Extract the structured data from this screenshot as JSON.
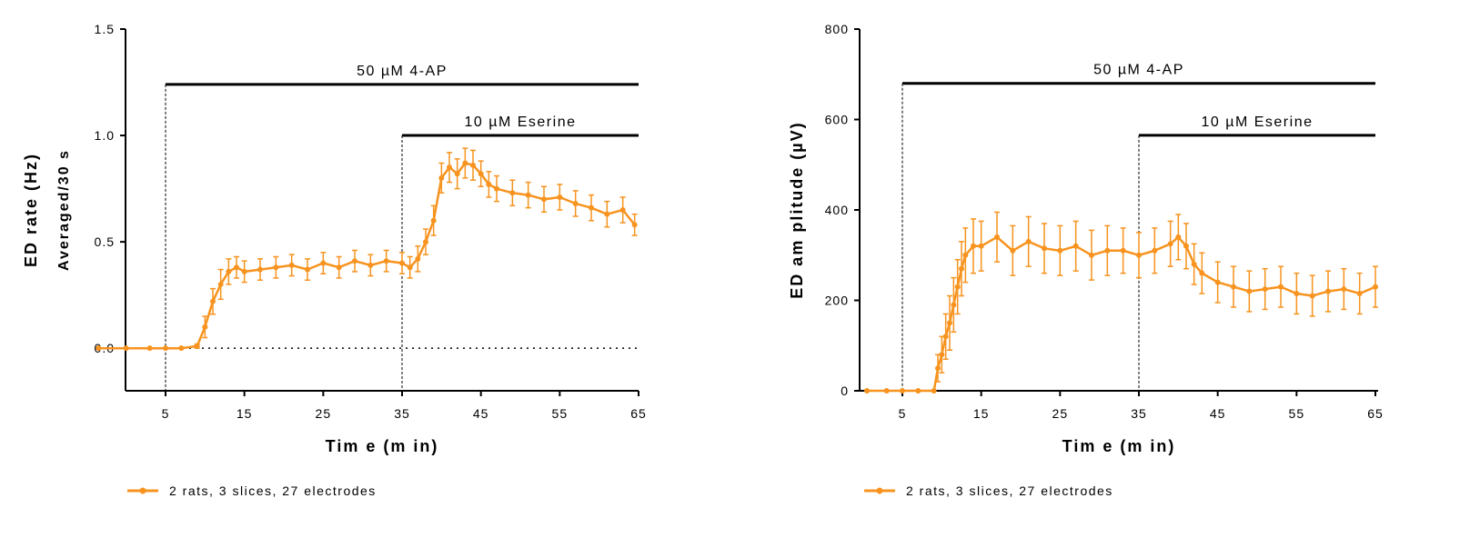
{
  "chart_data": [
    {
      "type": "line",
      "xlabel": "Tim e (m in)",
      "ylabel": "ED rate (Hz)",
      "ylabel2": "Averaged/30 s",
      "xlim": [
        -3.5,
        65
      ],
      "ylim": [
        -0.2,
        1.5
      ],
      "xticks": [
        "5",
        "15",
        "25",
        "35",
        "45",
        "55",
        "65"
      ],
      "yticks": [
        "0.0",
        "0.5",
        "1.0",
        "1.5"
      ],
      "grid": false,
      "baseline_dotted": 0,
      "legend_position": "bottom-left",
      "color": "#F7931E",
      "treatments": [
        {
          "label": "50 µM 4-AP",
          "start": 5,
          "end": 65,
          "level": 1.24
        },
        {
          "label": "10 µM Eserine",
          "start": 35,
          "end": 65,
          "level": 1.0
        }
      ],
      "series": [
        {
          "name": "2 rats, 3 slices, 27 electrodes",
          "x": [
            -3.5,
            0,
            3,
            5,
            7,
            9,
            10,
            11,
            12,
            13,
            14,
            15,
            17,
            19,
            21,
            23,
            25,
            27,
            29,
            31,
            33,
            35,
            36,
            37,
            38,
            39,
            40,
            41,
            42,
            43,
            44,
            45,
            46,
            47,
            49,
            51,
            53,
            55,
            57,
            59,
            61,
            63,
            64.5
          ],
          "y": [
            0,
            0,
            0,
            0,
            0,
            0.01,
            0.1,
            0.22,
            0.3,
            0.36,
            0.38,
            0.36,
            0.37,
            0.38,
            0.39,
            0.37,
            0.4,
            0.38,
            0.41,
            0.39,
            0.41,
            0.4,
            0.38,
            0.42,
            0.5,
            0.6,
            0.8,
            0.85,
            0.82,
            0.87,
            0.86,
            0.82,
            0.77,
            0.75,
            0.73,
            0.72,
            0.7,
            0.71,
            0.68,
            0.66,
            0.63,
            0.65,
            0.58
          ],
          "err": [
            0,
            0,
            0,
            0,
            0,
            0.01,
            0.05,
            0.06,
            0.07,
            0.06,
            0.05,
            0.05,
            0.05,
            0.05,
            0.05,
            0.05,
            0.05,
            0.05,
            0.05,
            0.05,
            0.05,
            0.05,
            0.05,
            0.06,
            0.06,
            0.07,
            0.07,
            0.07,
            0.07,
            0.07,
            0.07,
            0.06,
            0.06,
            0.06,
            0.06,
            0.06,
            0.06,
            0.06,
            0.06,
            0.06,
            0.06,
            0.06,
            0.05
          ]
        }
      ]
    },
    {
      "type": "line",
      "xlabel": "Tim e (m in)",
      "ylabel": "ED am plitude (µV)",
      "ylabel2": "",
      "xlim": [
        0,
        65
      ],
      "ylim": [
        0,
        800
      ],
      "xticks": [
        "5",
        "15",
        "25",
        "35",
        "45",
        "55",
        "65"
      ],
      "yticks": [
        "0",
        "200",
        "400",
        "600",
        "800"
      ],
      "grid": false,
      "legend_position": "bottom-left",
      "color": "#F7931E",
      "treatments": [
        {
          "label": "50 µM 4-AP",
          "start": 5,
          "end": 65,
          "level": 680
        },
        {
          "label": "10 µM Eserine",
          "start": 35,
          "end": 65,
          "level": 565
        }
      ],
      "series": [
        {
          "name": "2 rats, 3 slices, 27 electrodes",
          "x": [
            0.5,
            3,
            5,
            7,
            9,
            9.5,
            10,
            10.5,
            11,
            11.5,
            12,
            12.5,
            13,
            14,
            15,
            17,
            19,
            21,
            23,
            25,
            27,
            29,
            31,
            33,
            35,
            37,
            39,
            40,
            41,
            42,
            43,
            45,
            47,
            49,
            51,
            53,
            55,
            57,
            59,
            61,
            63,
            65
          ],
          "y": [
            0,
            0,
            0,
            0,
            0,
            50,
            80,
            120,
            150,
            190,
            230,
            270,
            300,
            320,
            320,
            340,
            310,
            330,
            315,
            310,
            320,
            300,
            310,
            310,
            300,
            310,
            325,
            340,
            320,
            280,
            260,
            240,
            230,
            220,
            225,
            230,
            215,
            210,
            220,
            225,
            215,
            230
          ],
          "err": [
            0,
            0,
            0,
            0,
            0,
            30,
            40,
            50,
            60,
            60,
            60,
            60,
            60,
            60,
            55,
            55,
            55,
            55,
            55,
            55,
            55,
            55,
            55,
            50,
            50,
            50,
            50,
            50,
            50,
            45,
            45,
            45,
            45,
            45,
            45,
            45,
            45,
            45,
            45,
            45,
            45,
            45
          ]
        }
      ]
    }
  ]
}
